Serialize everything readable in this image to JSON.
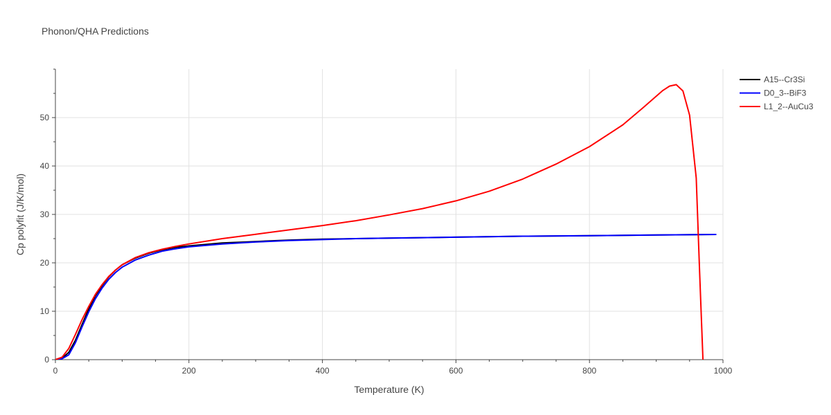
{
  "chart_data": {
    "type": "line",
    "title": "Phonon/QHA Predictions",
    "xlabel": "Temperature (K)",
    "ylabel": "Cp polyfit (J/K/mol)",
    "xlim": [
      0,
      1000
    ],
    "ylim": [
      0,
      60
    ],
    "x_ticks": [
      0,
      200,
      400,
      600,
      800,
      1000
    ],
    "y_ticks": [
      0,
      10,
      20,
      30,
      40,
      50
    ],
    "grid": true,
    "legend_position": "top-right",
    "series": [
      {
        "name": "A15--Cr3Si",
        "color": "#000000",
        "x": [
          0,
          10,
          20,
          30,
          40,
          50,
          60,
          70,
          80,
          90,
          100,
          120,
          140,
          160,
          180,
          200,
          250,
          300,
          350,
          400,
          450,
          500,
          600,
          700,
          800,
          900,
          990
        ],
        "y": [
          0,
          0.3,
          1.5,
          4.0,
          7.3,
          10.5,
          13.2,
          15.3,
          17.1,
          18.5,
          19.6,
          21.0,
          22.0,
          22.7,
          23.2,
          23.5,
          24.1,
          24.4,
          24.7,
          24.9,
          25.0,
          25.1,
          25.3,
          25.5,
          25.6,
          25.75,
          25.85
        ]
      },
      {
        "name": "D0_3--BiF3",
        "color": "#0000ff",
        "x": [
          0,
          10,
          20,
          30,
          40,
          50,
          60,
          70,
          80,
          90,
          100,
          120,
          140,
          160,
          180,
          200,
          250,
          300,
          350,
          400,
          450,
          500,
          600,
          700,
          800,
          900,
          990
        ],
        "y": [
          0,
          0.2,
          1.0,
          3.5,
          6.8,
          9.9,
          12.6,
          14.8,
          16.6,
          18.0,
          19.1,
          20.6,
          21.6,
          22.4,
          22.9,
          23.3,
          23.9,
          24.3,
          24.6,
          24.8,
          25.0,
          25.1,
          25.3,
          25.5,
          25.6,
          25.75,
          25.85
        ]
      },
      {
        "name": "L1_2--AuCu3",
        "color": "#ff0000",
        "x": [
          0,
          10,
          20,
          30,
          40,
          50,
          60,
          70,
          80,
          90,
          100,
          120,
          140,
          160,
          180,
          200,
          250,
          300,
          350,
          400,
          450,
          500,
          550,
          600,
          650,
          700,
          750,
          800,
          850,
          880,
          910,
          920,
          930,
          940,
          950,
          955,
          960,
          965,
          970
        ],
        "y": [
          0,
          0.5,
          2.3,
          5.2,
          8.3,
          11.0,
          13.5,
          15.5,
          17.2,
          18.5,
          19.6,
          21.1,
          22.1,
          22.8,
          23.4,
          23.9,
          25.0,
          25.9,
          26.8,
          27.7,
          28.7,
          29.9,
          31.2,
          32.8,
          34.8,
          37.3,
          40.4,
          44.0,
          48.5,
          52.0,
          55.6,
          56.5,
          56.8,
          55.5,
          50.5,
          44.0,
          37.5,
          18.0,
          0
        ]
      }
    ]
  }
}
